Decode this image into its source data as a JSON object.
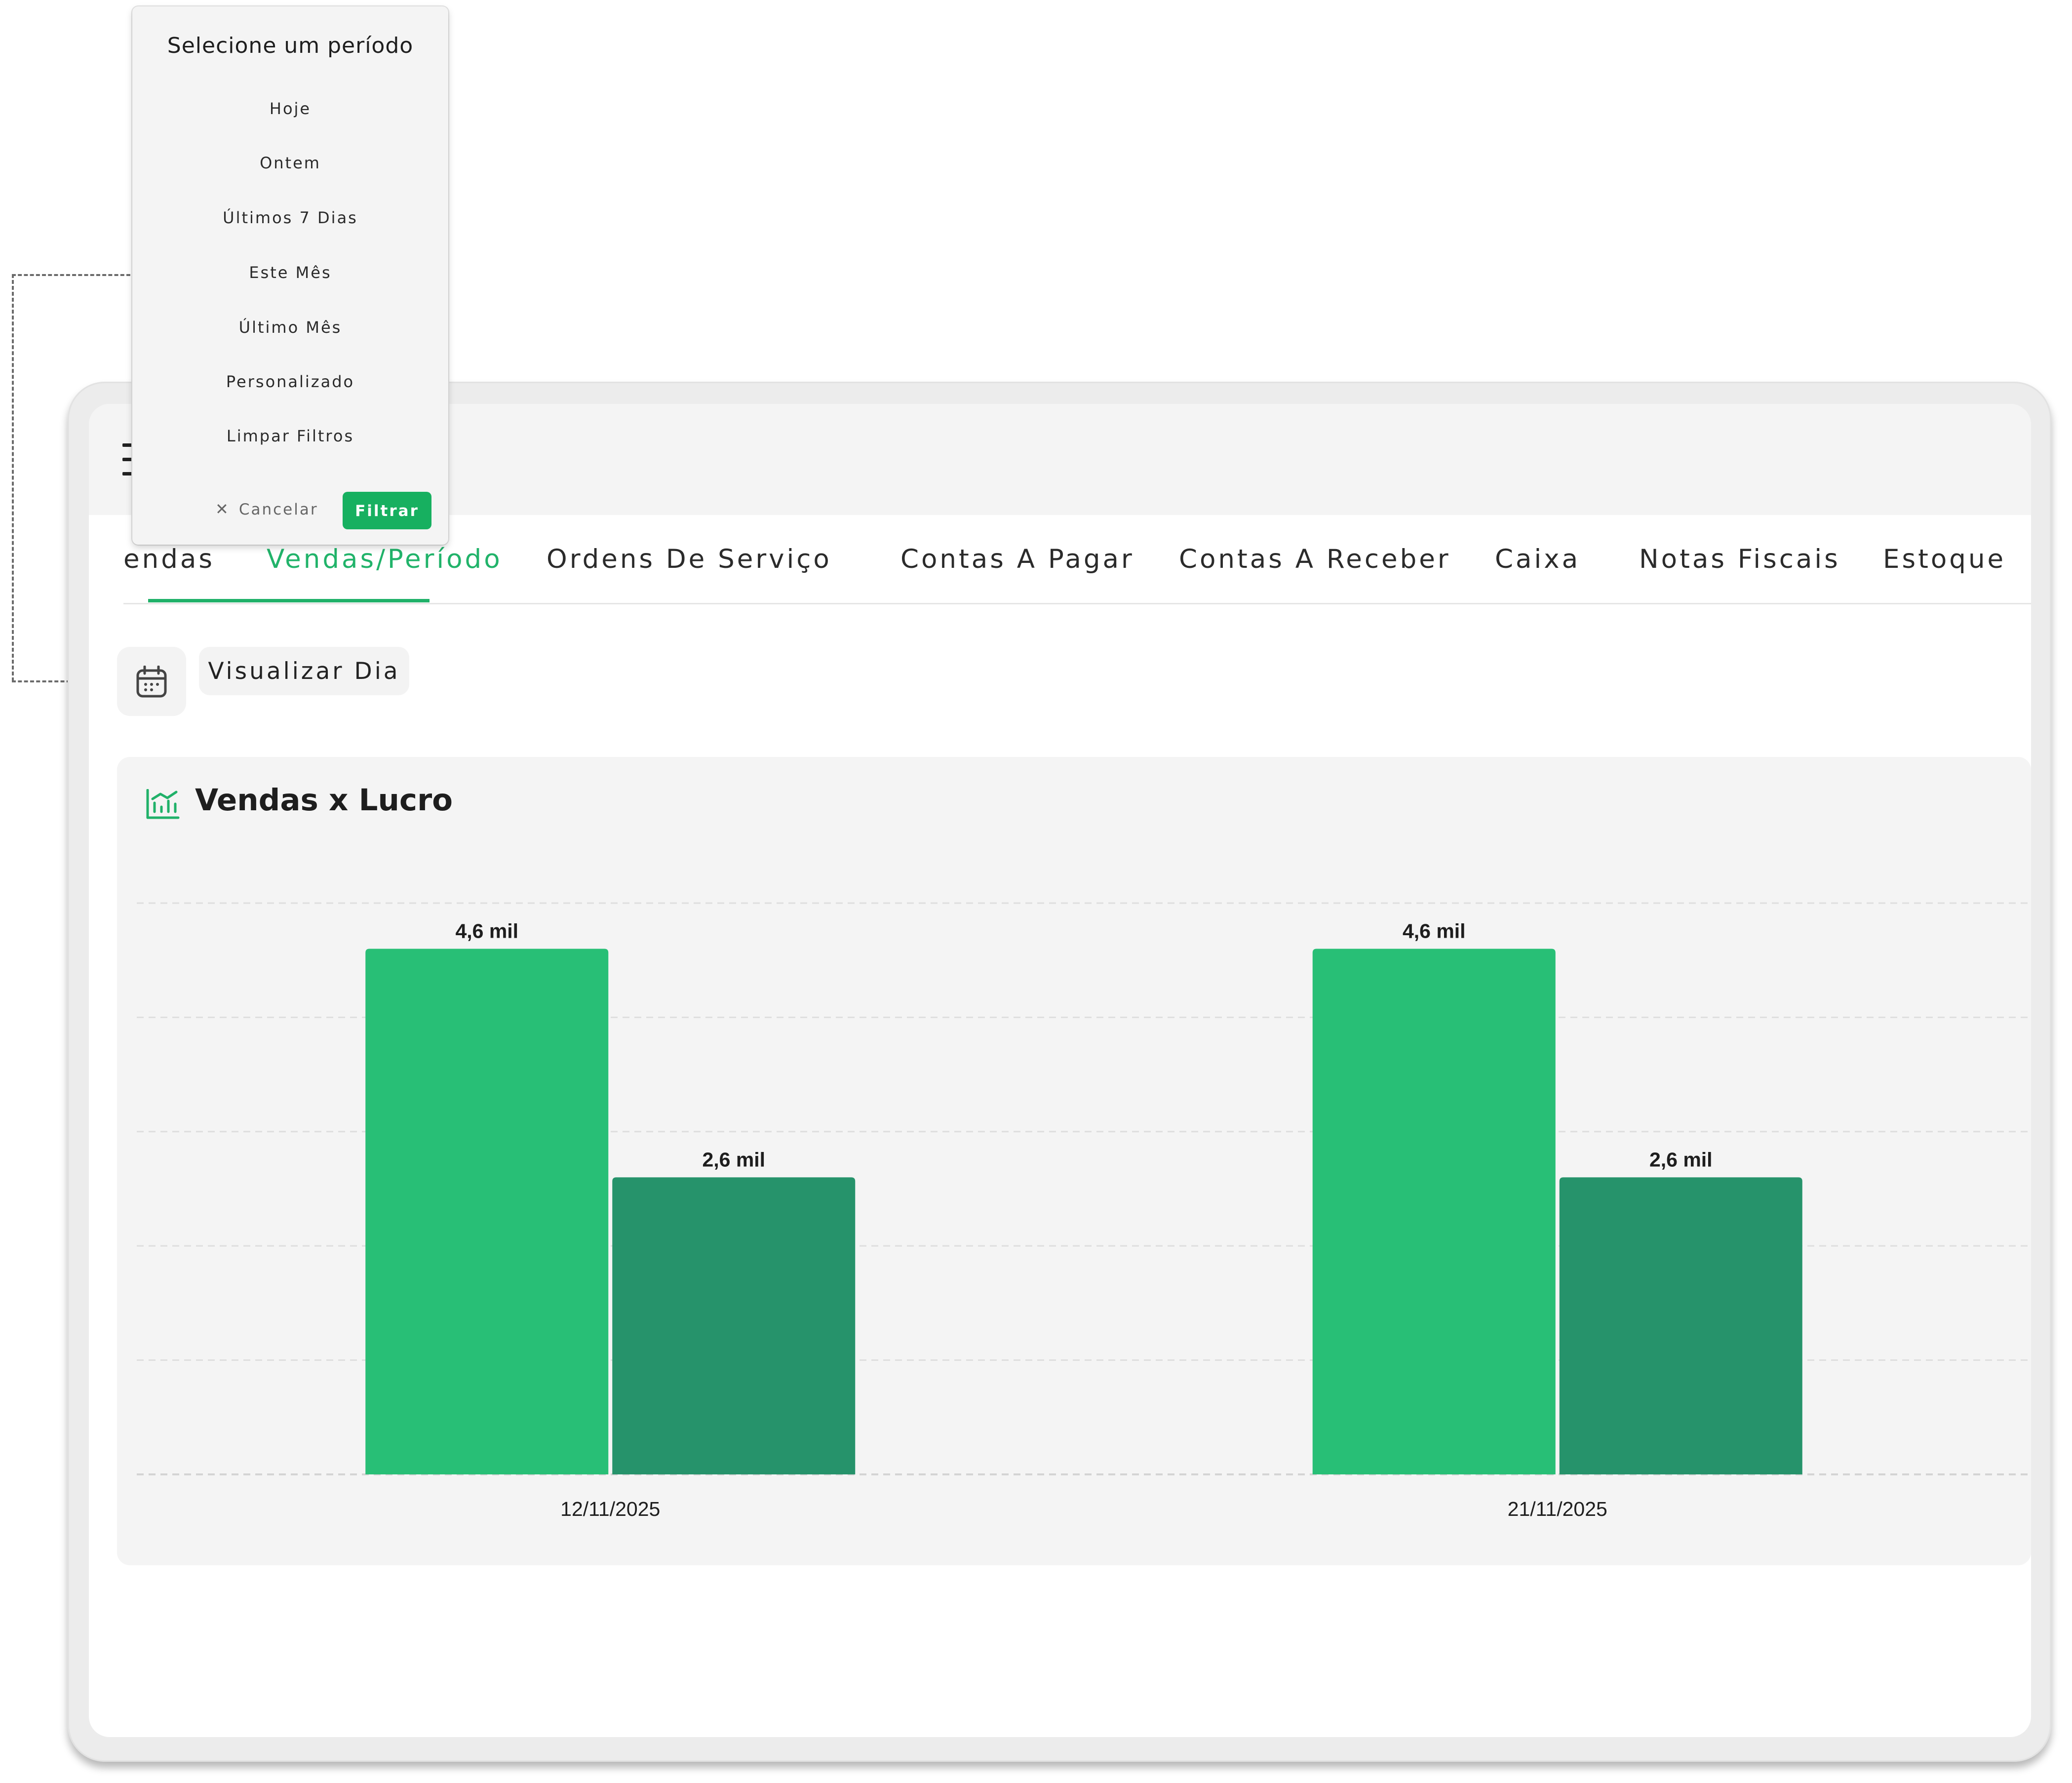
{
  "popup": {
    "title": "Selecione um período",
    "options": [
      "Hoje",
      "Ontem",
      "Últimos 7 Dias",
      "Este Mês",
      "Último Mês",
      "Personalizado",
      "Limpar Filtros"
    ],
    "cancel_label": "Cancelar",
    "filter_label": "Filtrar"
  },
  "tabs": [
    "endas",
    "Vendas/Período",
    "Ordens De Serviço",
    "Contas A Pagar",
    "Contas A Receber",
    "Caixa",
    "Notas Fiscais",
    "Estoque"
  ],
  "active_tab": "Vendas/Período",
  "toolbar": {
    "view_day_label": "Visualizar Dia",
    "calendar_icon": "calendar-icon"
  },
  "chart_title": "Vendas x Lucro",
  "colors": {
    "accent": "#20b169",
    "vendas": "#28bf76",
    "lucro": "#26936b",
    "filter_button": "#17b060"
  },
  "chart_data": {
    "type": "bar",
    "title": "Vendas x Lucro",
    "categories": [
      "12/11/2025",
      "21/11/2025"
    ],
    "series": [
      {
        "values": [
          4600,
          4600
        ],
        "labels": [
          "4,6 mil",
          "4,6 mil"
        ],
        "color": "#28bf76"
      },
      {
        "values": [
          2600,
          2600
        ],
        "labels": [
          "2,6 mil",
          "2,6 mil"
        ],
        "color": "#26936b"
      }
    ],
    "ylim": [
      0,
      5000
    ],
    "grid": true,
    "legend": "none"
  }
}
